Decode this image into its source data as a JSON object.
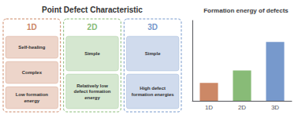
{
  "chart_data": {
    "type": "bar",
    "title": "Formation energy of defects",
    "categories": [
      "1D",
      "2D",
      "3D"
    ],
    "values": [
      1.0,
      1.7,
      3.3
    ],
    "colors": [
      "#cc8866",
      "#88bb77",
      "#7799cc"
    ],
    "ylim": [
      0,
      4.5
    ],
    "grid": false,
    "tick_labels": "x",
    "annotations": [
      "Point Defect Characteristic",
      [
        "1D",
        "Self-healing",
        "Complex",
        "Low formation\nenergy"
      ],
      [
        "2D",
        "Simple",
        "Relatively low\ndefect formation\nenergy"
      ],
      [
        "3D",
        "Simple",
        "High defect\nformation energies"
      ]
    ]
  }
}
